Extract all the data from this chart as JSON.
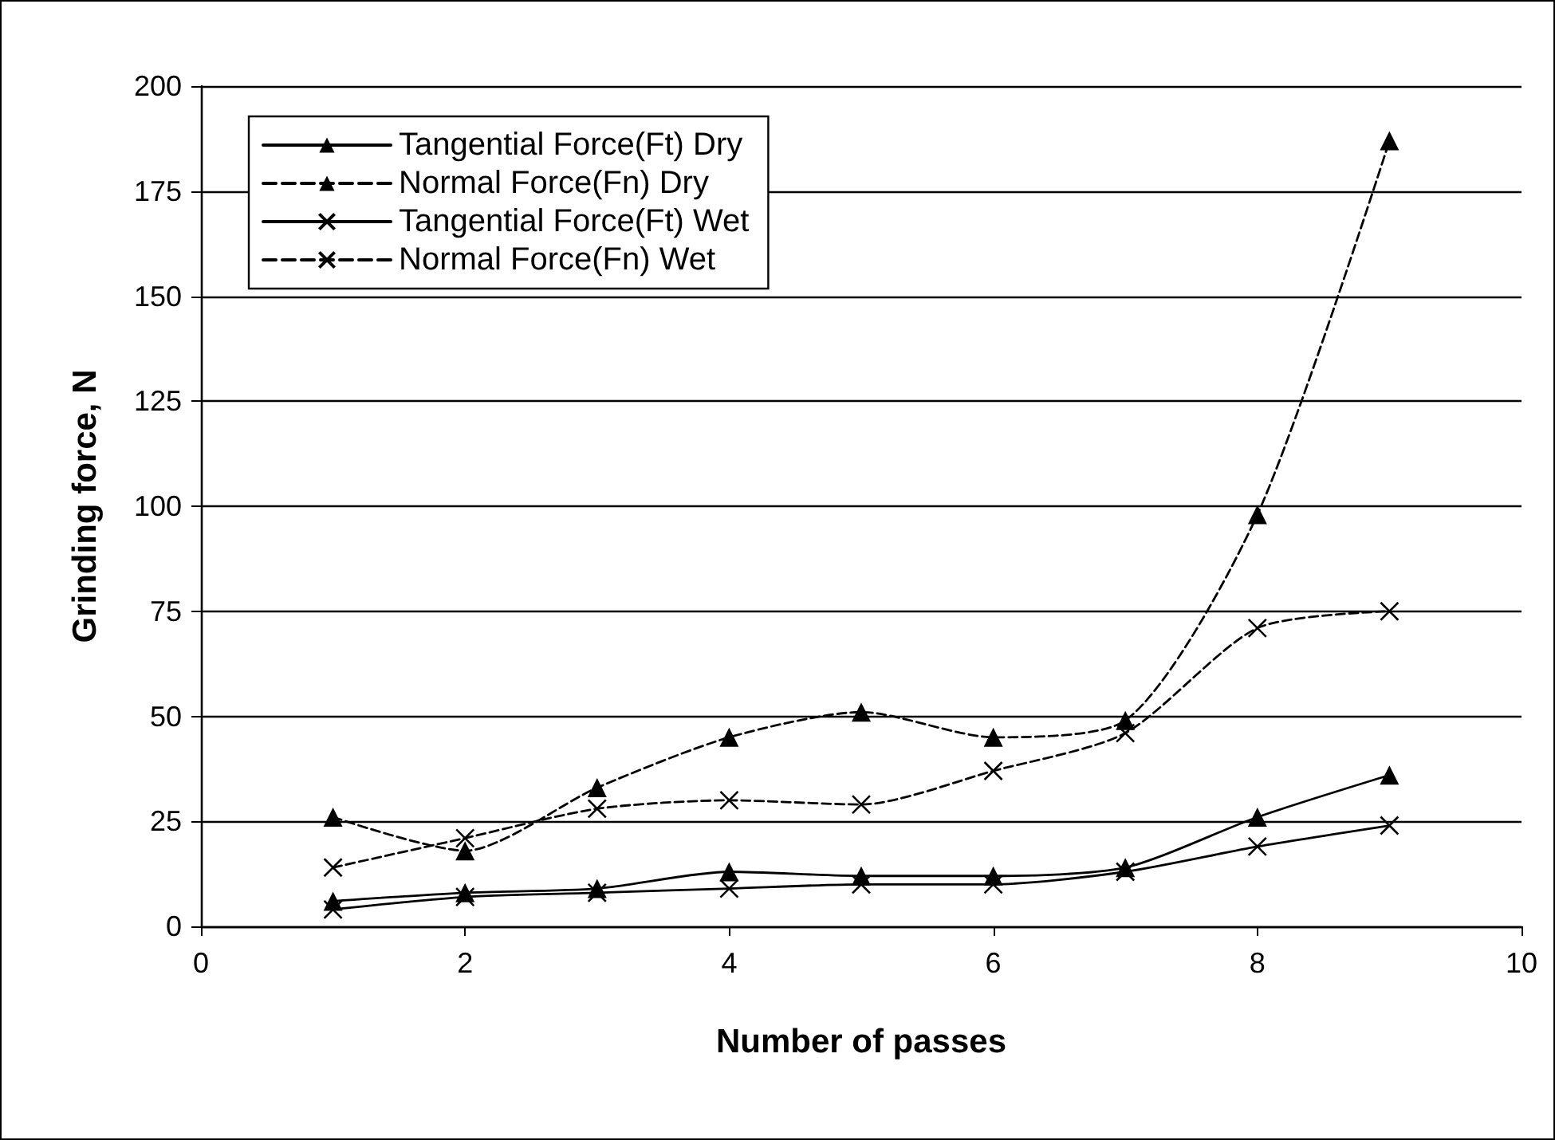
{
  "chart_data": {
    "type": "line",
    "xlabel": "Number of passes",
    "ylabel": "Grinding force, N",
    "x": [
      1,
      2,
      3,
      4,
      5,
      6,
      7,
      8,
      9
    ],
    "series": [
      {
        "name": "Tangential Force(Ft) Dry",
        "color": "#000000",
        "marker": "triangle",
        "line_style": "solid",
        "values": [
          6,
          8,
          9,
          13,
          12,
          12,
          14,
          26,
          36
        ]
      },
      {
        "name": "Normal Force(Fn) Dry",
        "color": "#000000",
        "marker": "triangle",
        "line_style": "dashed",
        "values": [
          26,
          18,
          33,
          45,
          51,
          45,
          49,
          98,
          187
        ]
      },
      {
        "name": "Tangential Force(Ft) Wet",
        "color": "#000000",
        "marker": "cross",
        "line_style": "solid",
        "values": [
          4,
          7,
          8,
          9,
          10,
          10,
          13,
          19,
          24
        ]
      },
      {
        "name": "Normal Force(Fn) Wet",
        "color": "#000000",
        "marker": "cross",
        "line_style": "dashed",
        "values": [
          14,
          21,
          28,
          30,
          29,
          37,
          46,
          71,
          75
        ]
      }
    ],
    "xlim": [
      0,
      10
    ],
    "xticks": [
      0,
      2,
      4,
      6,
      8,
      10
    ],
    "ylim": [
      0,
      200
    ],
    "yticks": [
      0,
      25,
      50,
      75,
      100,
      125,
      150,
      175,
      200
    ],
    "grid": "y",
    "legend": "top left"
  }
}
